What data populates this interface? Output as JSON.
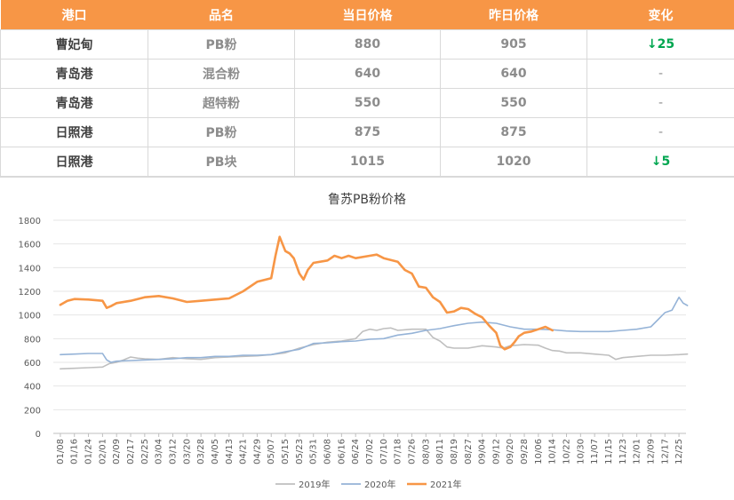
{
  "table": {
    "headers": [
      "港口",
      "品名",
      "当日价格",
      "昨日价格",
      "变化"
    ],
    "rows": [
      {
        "port": "曹妃甸",
        "product": "PB粉",
        "today": "880",
        "yesterday": "905",
        "change": "↓25"
      },
      {
        "port": "青岛港",
        "product": "混合粉",
        "today": "640",
        "yesterday": "640",
        "change": "-"
      },
      {
        "port": "青岛港",
        "product": "超特粉",
        "today": "550",
        "yesterday": "550",
        "change": "-"
      },
      {
        "port": "日照港",
        "product": "PB粉",
        "today": "875",
        "yesterday": "875",
        "change": "-"
      },
      {
        "port": "日照港",
        "product": "PB块",
        "today": "1015",
        "yesterday": "1020",
        "change": "↓5"
      }
    ]
  },
  "chart_data": {
    "type": "line",
    "title": "鲁苏PB粉价格",
    "ylim": [
      0,
      1800
    ],
    "yticks": [
      0,
      200,
      400,
      600,
      800,
      1000,
      1200,
      1400,
      1600,
      1800
    ],
    "x_tick_labels": [
      "01/08",
      "01/16",
      "01/24",
      "02/01",
      "02/09",
      "02/17",
      "02/25",
      "03/04",
      "03/12",
      "03/20",
      "03/28",
      "04/05",
      "04/13",
      "04/21",
      "04/29",
      "05/07",
      "05/15",
      "05/23",
      "05/31",
      "06/08",
      "06/16",
      "06/24",
      "07/02",
      "07/10",
      "07/18",
      "07/26",
      "08/03",
      "08/11",
      "08/19",
      "08/27",
      "09/04",
      "09/12",
      "09/20",
      "09/28",
      "10/06",
      "10/14",
      "10/22",
      "10/30",
      "11/07",
      "11/15",
      "11/23",
      "12/01",
      "12/09",
      "12/17",
      "12/25"
    ],
    "legend_position": "bottom",
    "grid": "horizontal",
    "series": [
      {
        "name": "2019年",
        "color": "#bfbfbf",
        "points": [
          [
            0,
            545
          ],
          [
            1,
            550
          ],
          [
            2,
            555
          ],
          [
            3,
            560
          ],
          [
            3.5,
            590
          ],
          [
            4,
            600
          ],
          [
            4.5,
            620
          ],
          [
            5,
            645
          ],
          [
            5.5,
            635
          ],
          [
            6,
            630
          ],
          [
            7,
            625
          ],
          [
            8,
            640
          ],
          [
            9,
            630
          ],
          [
            10,
            625
          ],
          [
            11,
            640
          ],
          [
            12,
            645
          ],
          [
            13,
            650
          ],
          [
            14,
            655
          ],
          [
            15,
            665
          ],
          [
            16,
            680
          ],
          [
            17,
            720
          ],
          [
            18,
            750
          ],
          [
            19,
            770
          ],
          [
            20,
            780
          ],
          [
            21,
            800
          ],
          [
            21.5,
            860
          ],
          [
            22,
            880
          ],
          [
            22.5,
            870
          ],
          [
            23,
            885
          ],
          [
            23.5,
            890
          ],
          [
            24,
            870
          ],
          [
            25,
            880
          ],
          [
            26,
            880
          ],
          [
            26.5,
            810
          ],
          [
            27,
            780
          ],
          [
            27.5,
            730
          ],
          [
            28,
            720
          ],
          [
            29,
            720
          ],
          [
            30,
            740
          ],
          [
            31,
            730
          ],
          [
            31.5,
            720
          ],
          [
            32,
            740
          ],
          [
            33,
            750
          ],
          [
            34,
            745
          ],
          [
            34.5,
            720
          ],
          [
            35,
            700
          ],
          [
            35.5,
            695
          ],
          [
            36,
            680
          ],
          [
            37,
            680
          ],
          [
            38,
            670
          ],
          [
            39,
            660
          ],
          [
            39.5,
            625
          ],
          [
            40,
            640
          ],
          [
            41,
            650
          ],
          [
            42,
            660
          ],
          [
            43,
            660
          ],
          [
            44,
            665
          ],
          [
            44.6,
            670
          ]
        ]
      },
      {
        "name": "2020年",
        "color": "#95b3d7",
        "points": [
          [
            0,
            665
          ],
          [
            1,
            670
          ],
          [
            2,
            675
          ],
          [
            3,
            675
          ],
          [
            3.3,
            620
          ],
          [
            3.6,
            600
          ],
          [
            4,
            610
          ],
          [
            5,
            615
          ],
          [
            6,
            620
          ],
          [
            7,
            625
          ],
          [
            8,
            630
          ],
          [
            9,
            640
          ],
          [
            10,
            640
          ],
          [
            11,
            650
          ],
          [
            12,
            650
          ],
          [
            13,
            660
          ],
          [
            14,
            660
          ],
          [
            15,
            665
          ],
          [
            16,
            690
          ],
          [
            17,
            710
          ],
          [
            18,
            760
          ],
          [
            19,
            765
          ],
          [
            20,
            775
          ],
          [
            21,
            780
          ],
          [
            22,
            795
          ],
          [
            23,
            800
          ],
          [
            24,
            830
          ],
          [
            25,
            845
          ],
          [
            26,
            870
          ],
          [
            27,
            885
          ],
          [
            28,
            910
          ],
          [
            29,
            930
          ],
          [
            30,
            940
          ],
          [
            31,
            930
          ],
          [
            32,
            900
          ],
          [
            33,
            880
          ],
          [
            34,
            880
          ],
          [
            35,
            875
          ],
          [
            36,
            865
          ],
          [
            37,
            860
          ],
          [
            38,
            860
          ],
          [
            39,
            860
          ],
          [
            40,
            870
          ],
          [
            41,
            880
          ],
          [
            42,
            900
          ],
          [
            42.5,
            960
          ],
          [
            43,
            1020
          ],
          [
            43.5,
            1040
          ],
          [
            44,
            1150
          ],
          [
            44.3,
            1100
          ],
          [
            44.6,
            1080
          ]
        ]
      },
      {
        "name": "2021年",
        "color": "#f79646",
        "points": [
          [
            0,
            1085
          ],
          [
            0.5,
            1120
          ],
          [
            1,
            1135
          ],
          [
            2,
            1130
          ],
          [
            3,
            1120
          ],
          [
            3.3,
            1060
          ],
          [
            3.6,
            1075
          ],
          [
            4,
            1100
          ],
          [
            5,
            1120
          ],
          [
            6,
            1150
          ],
          [
            7,
            1160
          ],
          [
            8,
            1140
          ],
          [
            9,
            1110
          ],
          [
            10,
            1120
          ],
          [
            11,
            1130
          ],
          [
            12,
            1140
          ],
          [
            13,
            1200
          ],
          [
            14,
            1280
          ],
          [
            15,
            1310
          ],
          [
            15.3,
            1500
          ],
          [
            15.6,
            1660
          ],
          [
            16,
            1540
          ],
          [
            16.3,
            1520
          ],
          [
            16.6,
            1480
          ],
          [
            17,
            1350
          ],
          [
            17.3,
            1300
          ],
          [
            17.6,
            1380
          ],
          [
            18,
            1440
          ],
          [
            19,
            1460
          ],
          [
            19.5,
            1500
          ],
          [
            20,
            1480
          ],
          [
            20.5,
            1500
          ],
          [
            21,
            1480
          ],
          [
            22,
            1500
          ],
          [
            22.5,
            1510
          ],
          [
            23,
            1480
          ],
          [
            24,
            1450
          ],
          [
            24.5,
            1380
          ],
          [
            25,
            1350
          ],
          [
            25.5,
            1240
          ],
          [
            26,
            1230
          ],
          [
            26.5,
            1150
          ],
          [
            27,
            1110
          ],
          [
            27.5,
            1020
          ],
          [
            28,
            1030
          ],
          [
            28.5,
            1060
          ],
          [
            29,
            1050
          ],
          [
            29.5,
            1010
          ],
          [
            30,
            980
          ],
          [
            30.5,
            910
          ],
          [
            31,
            850
          ],
          [
            31.3,
            740
          ],
          [
            31.6,
            710
          ],
          [
            32,
            730
          ],
          [
            32.3,
            770
          ],
          [
            32.6,
            820
          ],
          [
            33,
            850
          ],
          [
            33.5,
            860
          ],
          [
            34,
            880
          ],
          [
            34.5,
            900
          ],
          [
            35,
            870
          ]
        ]
      }
    ]
  }
}
